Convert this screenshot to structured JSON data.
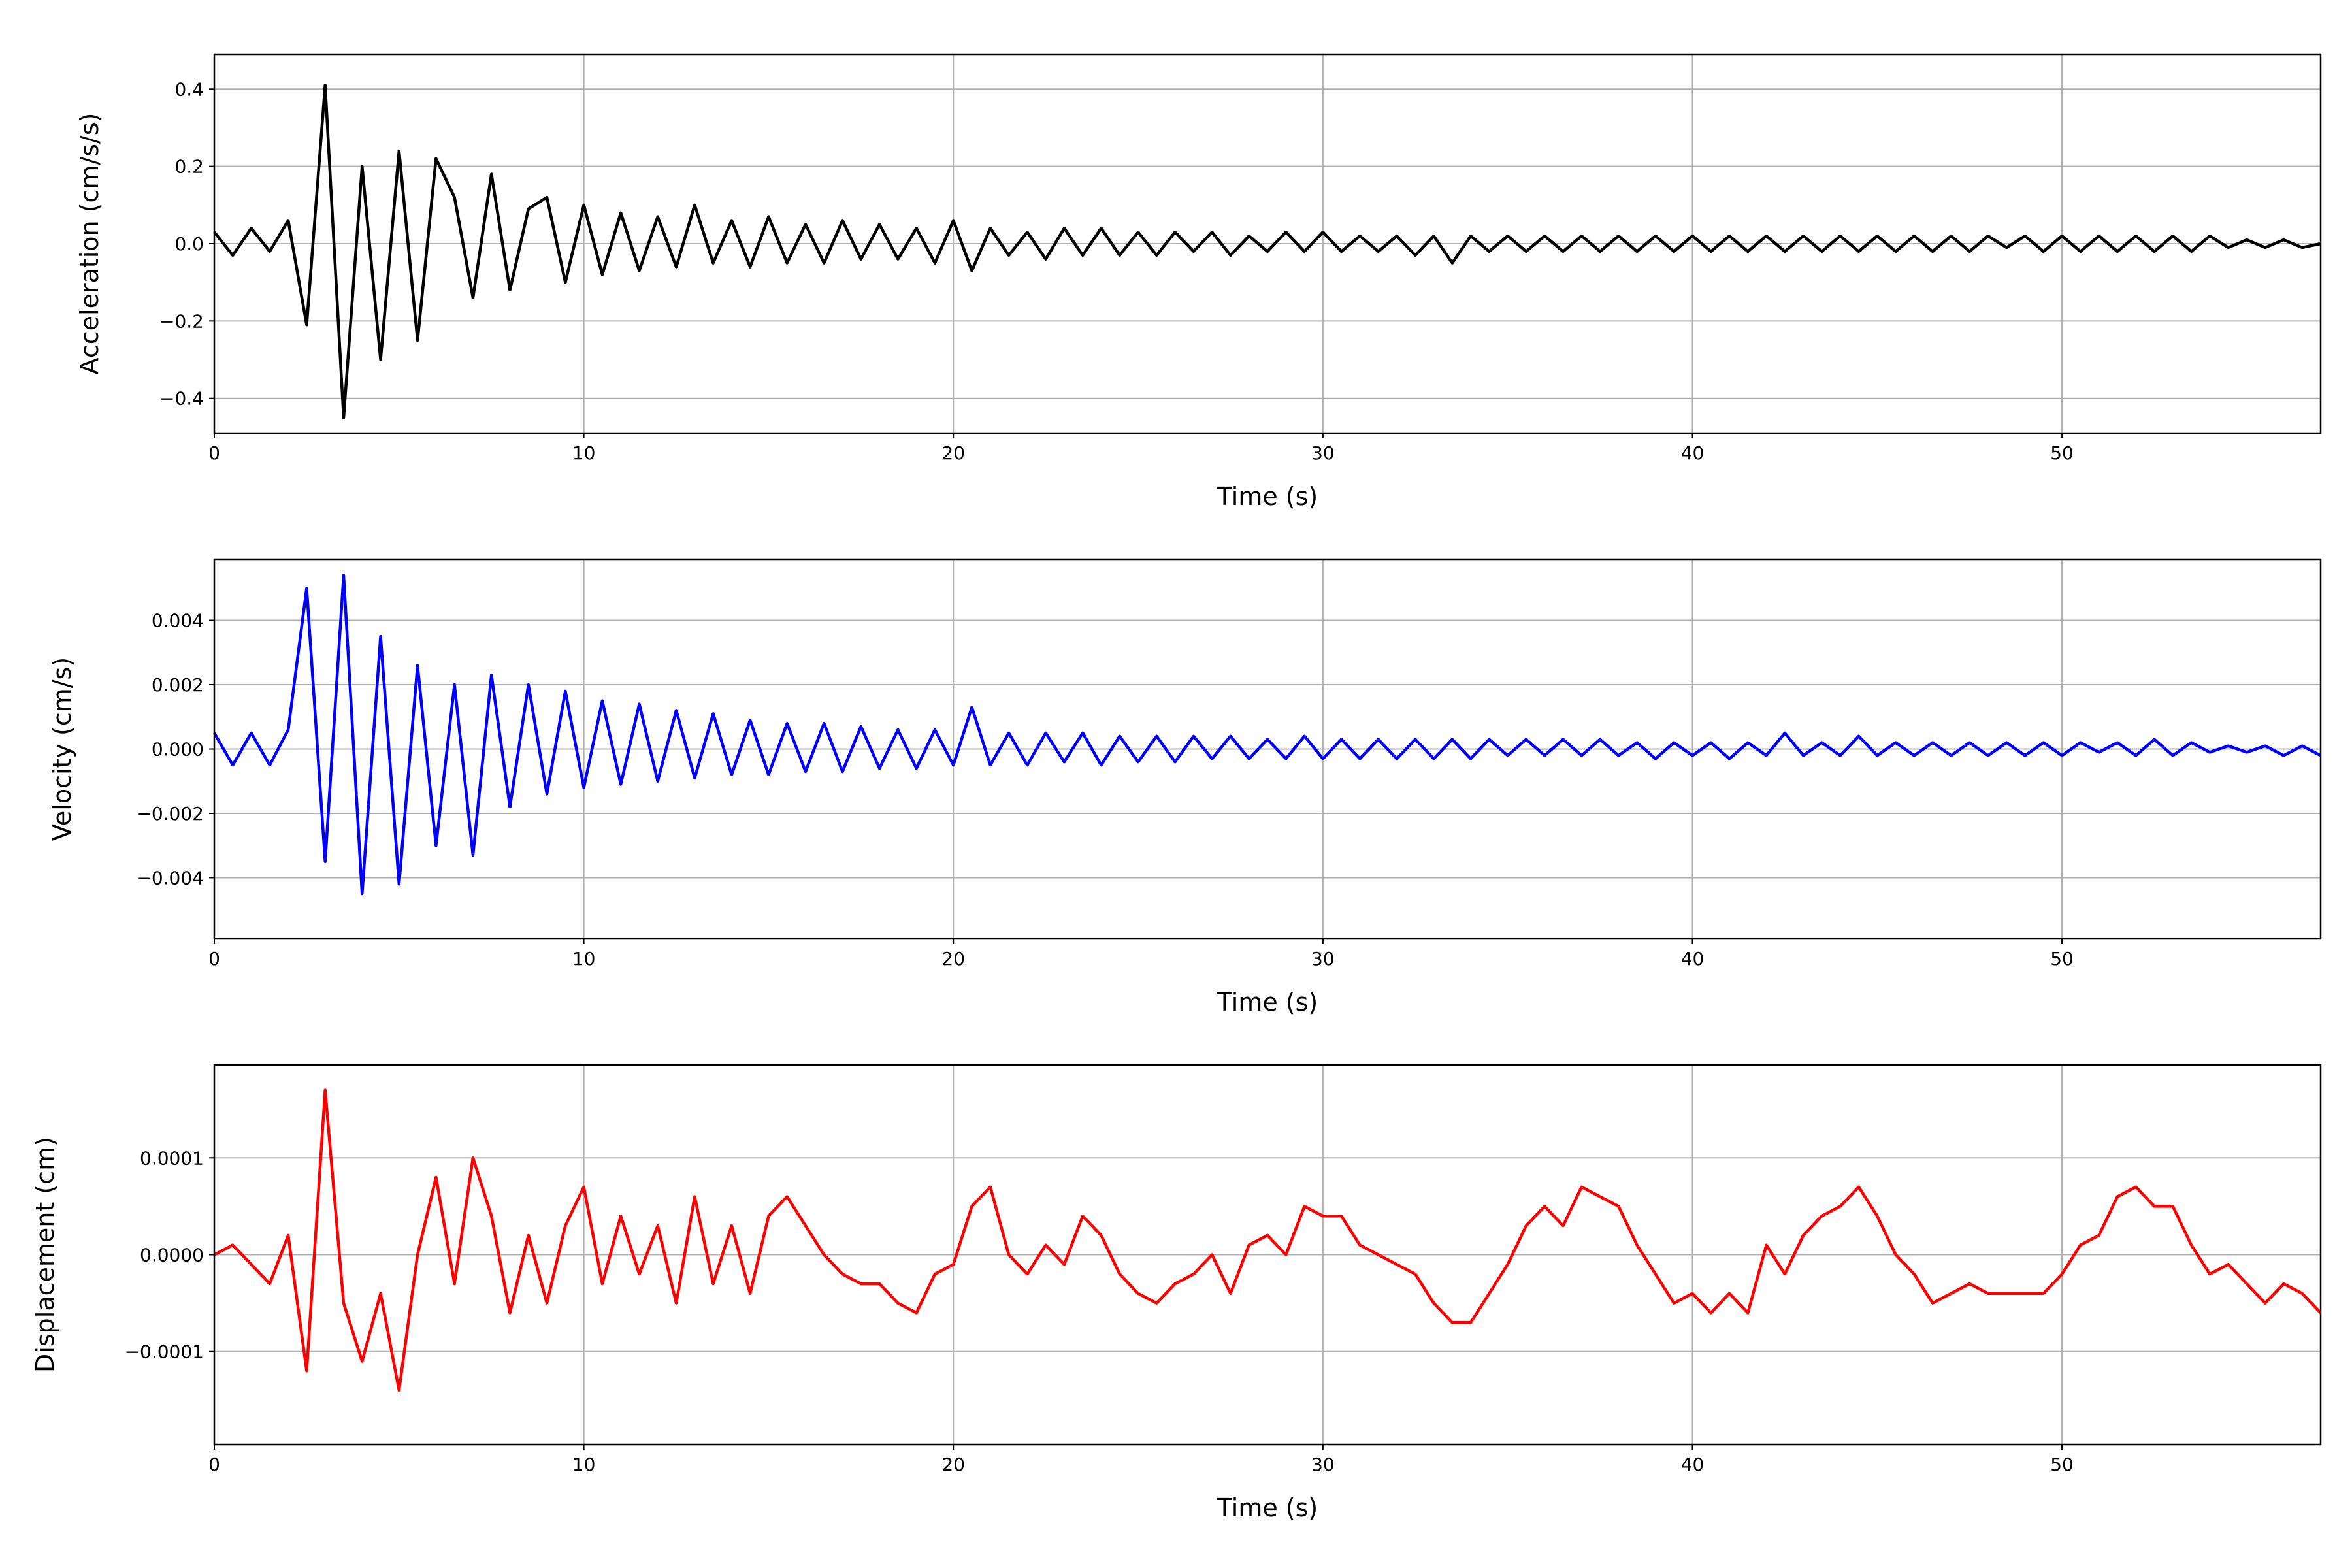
{
  "chart_data": [
    {
      "type": "line",
      "ylabel": "Acceleration (cm/s/s)",
      "xlabel": "Time (s)",
      "color": "#000000",
      "grid": true,
      "xlim": [
        0,
        57
      ],
      "xticks": [
        0,
        10,
        20,
        30,
        40,
        50
      ],
      "ylim": [
        -0.49,
        0.49
      ],
      "yticks": [
        {
          "value": -0.4,
          "label": "−0.4"
        },
        {
          "value": -0.2,
          "label": "−0.2"
        },
        {
          "value": 0,
          "label": "0.0"
        },
        {
          "value": 0.2,
          "label": "0.2"
        },
        {
          "value": 0.4,
          "label": "0.4"
        }
      ],
      "x": [
        0,
        0.5,
        1,
        1.5,
        2,
        2.5,
        3,
        3.5,
        4,
        4.5,
        5,
        5.5,
        6,
        6.5,
        7,
        7.5,
        8,
        8.5,
        9,
        9.5,
        10,
        10.5,
        11,
        11.5,
        12,
        12.5,
        13,
        13.5,
        14,
        14.5,
        15,
        15.5,
        16,
        16.5,
        17,
        17.5,
        18,
        18.5,
        19,
        19.5,
        20,
        20.5,
        21,
        21.5,
        22,
        22.5,
        23,
        23.5,
        24,
        24.5,
        25,
        25.5,
        26,
        26.5,
        27,
        27.5,
        28,
        28.5,
        29,
        29.5,
        30,
        30.5,
        31,
        31.5,
        32,
        32.5,
        33,
        33.5,
        34,
        34.5,
        35,
        35.5,
        36,
        36.5,
        37,
        37.5,
        38,
        38.5,
        39,
        39.5,
        40,
        40.5,
        41,
        41.5,
        42,
        42.5,
        43,
        43.5,
        44,
        44.5,
        45,
        45.5,
        46,
        46.5,
        47,
        47.5,
        48,
        48.5,
        49,
        49.5,
        50,
        50.5,
        51,
        51.5,
        52,
        52.5,
        53,
        53.5,
        54,
        54.5,
        55,
        55.5,
        56,
        56.5,
        57
      ],
      "values": [
        0.03,
        -0.03,
        0.04,
        -0.02,
        0.06,
        -0.21,
        0.41,
        -0.45,
        0.2,
        -0.3,
        0.24,
        -0.25,
        0.22,
        0.12,
        -0.14,
        0.18,
        -0.12,
        0.09,
        0.12,
        -0.1,
        0.1,
        -0.08,
        0.08,
        -0.07,
        0.07,
        -0.06,
        0.1,
        -0.05,
        0.06,
        -0.06,
        0.07,
        -0.05,
        0.05,
        -0.05,
        0.06,
        -0.04,
        0.05,
        -0.04,
        0.04,
        -0.05,
        0.06,
        -0.07,
        0.04,
        -0.03,
        0.03,
        -0.04,
        0.04,
        -0.03,
        0.04,
        -0.03,
        0.03,
        -0.03,
        0.03,
        -0.02,
        0.03,
        -0.03,
        0.02,
        -0.02,
        0.03,
        -0.02,
        0.03,
        -0.02,
        0.02,
        -0.02,
        0.02,
        -0.03,
        0.02,
        -0.05,
        0.02,
        -0.02,
        0.02,
        -0.02,
        0.02,
        -0.02,
        0.02,
        -0.02,
        0.02,
        -0.02,
        0.02,
        -0.02,
        0.02,
        -0.02,
        0.02,
        -0.02,
        0.02,
        -0.02,
        0.02,
        -0.02,
        0.02,
        -0.02,
        0.02,
        -0.02,
        0.02,
        -0.02,
        0.02,
        -0.02,
        0.02,
        -0.01,
        0.02,
        -0.02,
        0.02,
        -0.02,
        0.02,
        -0.02,
        0.02,
        -0.02,
        0.02,
        -0.02,
        0.02,
        -0.01,
        0.01,
        -0.01,
        0.01,
        -0.01,
        0
      ]
    },
    {
      "type": "line",
      "ylabel": "Velocity (cm/s)",
      "xlabel": "Time (s)",
      "color": "#0000ff",
      "grid": true,
      "xlim": [
        0,
        57
      ],
      "xticks": [
        0,
        10,
        20,
        30,
        40,
        50
      ],
      "ylim": [
        -0.0059,
        0.0059
      ],
      "yticks": [
        {
          "value": -0.004,
          "label": "−0.004"
        },
        {
          "value": -0.002,
          "label": "−0.002"
        },
        {
          "value": 0,
          "label": "0.000"
        },
        0.002,
        0.004
      ],
      "x": [
        0,
        0.5,
        1,
        1.5,
        2,
        2.5,
        3,
        3.5,
        4,
        4.5,
        5,
        5.5,
        6,
        6.5,
        7,
        7.5,
        8,
        8.5,
        9,
        9.5,
        10,
        10.5,
        11,
        11.5,
        12,
        12.5,
        13,
        13.5,
        14,
        14.5,
        15,
        15.5,
        16,
        16.5,
        17,
        17.5,
        18,
        18.5,
        19,
        19.5,
        20,
        20.5,
        21,
        21.5,
        22,
        22.5,
        23,
        23.5,
        24,
        24.5,
        25,
        25.5,
        26,
        26.5,
        27,
        27.5,
        28,
        28.5,
        29,
        29.5,
        30,
        30.5,
        31,
        31.5,
        32,
        32.5,
        33,
        33.5,
        34,
        34.5,
        35,
        35.5,
        36,
        36.5,
        37,
        37.5,
        38,
        38.5,
        39,
        39.5,
        40,
        40.5,
        41,
        41.5,
        42,
        42.5,
        43,
        43.5,
        44,
        44.5,
        45,
        45.5,
        46,
        46.5,
        47,
        47.5,
        48,
        48.5,
        49,
        49.5,
        50,
        50.5,
        51,
        51.5,
        52,
        52.5,
        53,
        53.5,
        54,
        54.5,
        55,
        55.5,
        56,
        56.5,
        57
      ],
      "values": [
        0.0005,
        -0.0005,
        0.0005,
        -0.0005,
        0.0006,
        0.005,
        -0.0035,
        0.0054,
        -0.0045,
        0.0035,
        -0.0042,
        0.0026,
        -0.003,
        0.002,
        -0.0033,
        0.0023,
        -0.0018,
        0.002,
        -0.0014,
        0.0018,
        -0.0012,
        0.0015,
        -0.0011,
        0.0014,
        -0.001,
        0.0012,
        -0.0009,
        0.0011,
        -0.0008,
        0.0009,
        -0.0008,
        0.0008,
        -0.0007,
        0.0008,
        -0.0007,
        0.0007,
        -0.0006,
        0.0006,
        -0.0006,
        0.0006,
        -0.0005,
        0.0013,
        -0.0005,
        0.0005,
        -0.0005,
        0.0005,
        -0.0004,
        0.0005,
        -0.0005,
        0.0004,
        -0.0004,
        0.0004,
        -0.0004,
        0.0004,
        -0.0003,
        0.0004,
        -0.0003,
        0.0003,
        -0.0003,
        0.0004,
        -0.0003,
        0.0003,
        -0.0003,
        0.0003,
        -0.0003,
        0.0003,
        -0.0003,
        0.0003,
        -0.0003,
        0.0003,
        -0.0002,
        0.0003,
        -0.0002,
        0.0003,
        -0.0002,
        0.0003,
        -0.0002,
        0.0002,
        -0.0003,
        0.0002,
        -0.0002,
        0.0002,
        -0.0003,
        0.0002,
        -0.0002,
        0.0005,
        -0.0002,
        0.0002,
        -0.0002,
        0.0004,
        -0.0002,
        0.0002,
        -0.0002,
        0.0002,
        -0.0002,
        0.0002,
        -0.0002,
        0.0002,
        -0.0002,
        0.0002,
        -0.0002,
        0.0002,
        -0.0001,
        0.0002,
        -0.0002,
        0.0003,
        -0.0002,
        0.0002,
        -0.0001,
        0.0001,
        -0.0001,
        0.0001,
        -0.0002,
        0.0001,
        -0.0002
      ]
    },
    {
      "type": "line",
      "ylabel": "Displacement (cm)",
      "xlabel": "Time (s)",
      "color": "#ff0000",
      "grid": true,
      "xlim": [
        0,
        57
      ],
      "xticks": [
        0,
        10,
        20,
        30,
        40,
        50
      ],
      "ylim": [
        -0.000196,
        0.000196
      ],
      "yticks": [
        {
          "value": -0.0001,
          "label": "−0.0001"
        },
        {
          "value": 0,
          "label": "0.0000"
        },
        0.0001
      ],
      "x": [
        0,
        0.5,
        1,
        1.5,
        2,
        2.5,
        3,
        3.5,
        4,
        4.5,
        5,
        5.5,
        6,
        6.5,
        7,
        7.5,
        8,
        8.5,
        9,
        9.5,
        10,
        10.5,
        11,
        11.5,
        12,
        12.5,
        13,
        13.5,
        14,
        14.5,
        15,
        15.5,
        16,
        16.5,
        17,
        17.5,
        18,
        18.5,
        19,
        19.5,
        20,
        20.5,
        21,
        21.5,
        22,
        22.5,
        23,
        23.5,
        24,
        24.5,
        25,
        25.5,
        26,
        26.5,
        27,
        27.5,
        28,
        28.5,
        29,
        29.5,
        30,
        30.5,
        31,
        31.5,
        32,
        32.5,
        33,
        33.5,
        34,
        34.5,
        35,
        35.5,
        36,
        36.5,
        37,
        37.5,
        38,
        38.5,
        39,
        39.5,
        40,
        40.5,
        41,
        41.5,
        42,
        42.5,
        43,
        43.5,
        44,
        44.5,
        45,
        45.5,
        46,
        46.5,
        47,
        47.5,
        48,
        48.5,
        49,
        49.5,
        50,
        50.5,
        51,
        51.5,
        52,
        52.5,
        53,
        53.5,
        54,
        54.5,
        55,
        55.5,
        56,
        56.5,
        57
      ],
      "values": [
        0,
        1e-05,
        -1e-05,
        -3e-05,
        2e-05,
        -0.00012,
        0.00017,
        -5e-05,
        -0.00011,
        -4e-05,
        -0.00014,
        0,
        8e-05,
        -3e-05,
        0.0001,
        4e-05,
        -6e-05,
        2e-05,
        -5e-05,
        3e-05,
        7e-05,
        -3e-05,
        4e-05,
        -2e-05,
        3e-05,
        -5e-05,
        6e-05,
        -3e-05,
        3e-05,
        -4e-05,
        4e-05,
        6e-05,
        3e-05,
        0,
        -2e-05,
        -3e-05,
        -3e-05,
        -5e-05,
        -6e-05,
        -2e-05,
        -1e-05,
        5e-05,
        7e-05,
        0,
        -2e-05,
        1e-05,
        -1e-05,
        4e-05,
        2e-05,
        -2e-05,
        -4e-05,
        -5e-05,
        -3e-05,
        -2e-05,
        0,
        -4e-05,
        1e-05,
        2e-05,
        0,
        5e-05,
        4e-05,
        4e-05,
        1e-05,
        0,
        -1e-05,
        -2e-05,
        -5e-05,
        -7e-05,
        -7e-05,
        -4e-05,
        -1e-05,
        3e-05,
        5e-05,
        3e-05,
        7e-05,
        6e-05,
        5e-05,
        1e-05,
        -2e-05,
        -5e-05,
        -4e-05,
        -6e-05,
        -4e-05,
        -6e-05,
        1e-05,
        -2e-05,
        2e-05,
        4e-05,
        5e-05,
        7e-05,
        4e-05,
        0,
        -2e-05,
        -5e-05,
        -4e-05,
        -3e-05,
        -4e-05,
        -4e-05,
        -4e-05,
        -4e-05,
        -2e-05,
        1e-05,
        2e-05,
        6e-05,
        7e-05,
        5e-05,
        5e-05,
        1e-05,
        -2e-05,
        -1e-05,
        -3e-05,
        -5e-05,
        -3e-05,
        -4e-05,
        -6e-05
      ]
    }
  ]
}
